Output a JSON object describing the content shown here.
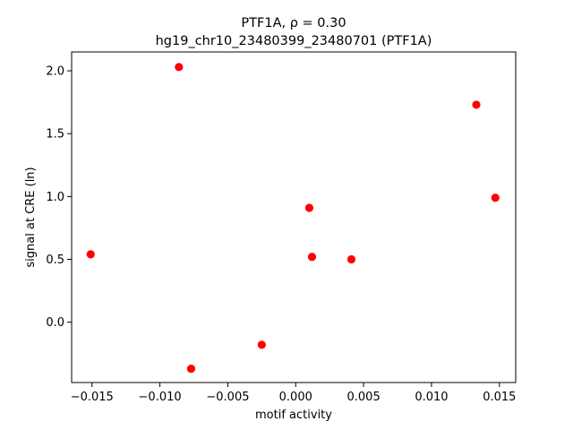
{
  "chart_data": {
    "type": "scatter",
    "title_line1": "PTF1A, ρ = 0.30",
    "title_line2": "hg19_chr10_23480399_23480701 (PTF1A)",
    "xlabel": "motif activity",
    "ylabel": "signal at CRE (ln)",
    "xlim": [
      -0.0165,
      0.0162
    ],
    "ylim": [
      -0.48,
      2.15
    ],
    "xticks": [
      -0.015,
      -0.01,
      -0.005,
      0.0,
      0.005,
      0.01,
      0.015
    ],
    "xtick_labels": [
      "−0.015",
      "−0.010",
      "−0.005",
      "0.000",
      "0.005",
      "0.010",
      "0.015"
    ],
    "yticks": [
      0.0,
      0.5,
      1.0,
      1.5,
      2.0
    ],
    "ytick_labels": [
      "0.0",
      "0.5",
      "1.0",
      "1.5",
      "2.0"
    ],
    "grid": false,
    "marker_color": "#ff0000",
    "points": [
      {
        "x": -0.0151,
        "y": 0.54
      },
      {
        "x": -0.0086,
        "y": 2.03
      },
      {
        "x": -0.0077,
        "y": -0.37
      },
      {
        "x": -0.0025,
        "y": -0.18
      },
      {
        "x": 0.001,
        "y": 0.91
      },
      {
        "x": 0.0012,
        "y": 0.52
      },
      {
        "x": 0.0041,
        "y": 0.5
      },
      {
        "x": 0.0133,
        "y": 1.73
      },
      {
        "x": 0.0147,
        "y": 0.99
      }
    ]
  }
}
